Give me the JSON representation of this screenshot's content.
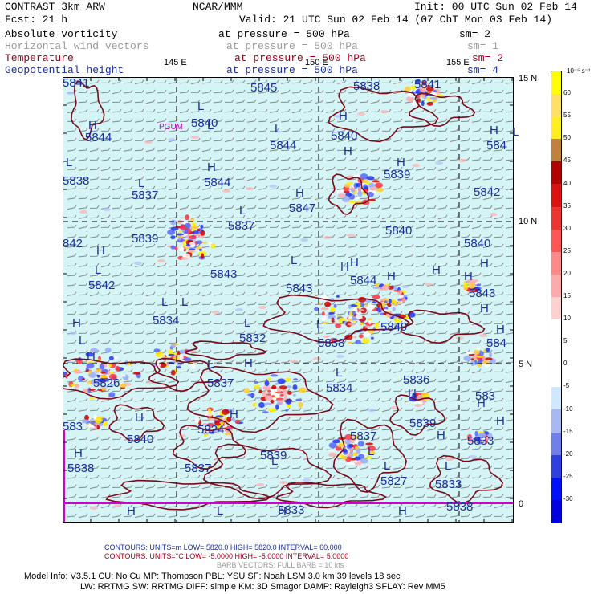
{
  "header": {
    "title": "CONTRAST  3km ARW",
    "center": "NCAR/MMM",
    "init": "Init: 00 UTC Sun 02 Feb 14",
    "fcst": "Fcst:    21 h",
    "valid": "Valid: 21 UTC Sun 02 Feb 14 (07 ChT Mon 03 Feb 14)"
  },
  "fields": [
    {
      "name": "Absolute vorticity",
      "level": "at pressure =  500 hPa",
      "sm": "sm= 2",
      "color": "#000000"
    },
    {
      "name": "Horizontal wind vectors",
      "level": "at pressure =  500 hPa",
      "sm": "sm= 1",
      "color": "#9a9a9a"
    },
    {
      "name": "Temperature",
      "level": "at pressure =  500 hPa",
      "sm": "sm= 2",
      "color": "#a0001a"
    },
    {
      "name": "Geopotential height",
      "level": "at pressure =  500 hPa",
      "sm": "sm= 4",
      "color": "#1a2f9a"
    }
  ],
  "map": {
    "lon_labels": [
      "145 E",
      "150 E",
      "155 E"
    ],
    "lat_labels": [
      "15 N",
      "10 N",
      "5 N",
      "0"
    ],
    "station": "PGUM",
    "height_labels": [
      {
        "t": "5841"
      },
      {
        "t": "5845"
      },
      {
        "t": "5838"
      },
      {
        "t": "5841"
      },
      {
        "t": "5840"
      },
      {
        "t": "5844"
      },
      {
        "t": "5844"
      },
      {
        "t": "5840"
      },
      {
        "t": "584"
      },
      {
        "t": "5838"
      },
      {
        "t": "5837"
      },
      {
        "t": "5844"
      },
      {
        "t": "5839"
      },
      {
        "t": "5842"
      },
      {
        "t": "5847"
      },
      {
        "t": "5837"
      },
      {
        "t": "5839"
      },
      {
        "t": "5840"
      },
      {
        "t": "5840"
      },
      {
        "t": "842"
      },
      {
        "t": "5842"
      },
      {
        "t": "5843"
      },
      {
        "t": "5843"
      },
      {
        "t": "5844"
      },
      {
        "t": "5843"
      },
      {
        "t": "5834"
      },
      {
        "t": "5849"
      },
      {
        "t": "5832"
      },
      {
        "t": "5838"
      },
      {
        "t": "584"
      },
      {
        "t": "583"
      },
      {
        "t": "5826"
      },
      {
        "t": "5837"
      },
      {
        "t": "5834"
      },
      {
        "t": "5836"
      },
      {
        "t": "583"
      },
      {
        "t": "5824"
      },
      {
        "t": "5839"
      },
      {
        "t": "5840"
      },
      {
        "t": "5837"
      },
      {
        "t": "5833"
      },
      {
        "t": "5839"
      },
      {
        "t": "5837"
      },
      {
        "t": "5838"
      },
      {
        "t": "5827"
      },
      {
        "t": "5833"
      },
      {
        "t": "5833"
      },
      {
        "t": "5838"
      }
    ],
    "hl_marks": [
      "L",
      "H",
      "L",
      "H",
      "H",
      "L",
      "H",
      "L",
      "H",
      "H",
      "L",
      "L",
      "H",
      "L",
      "L",
      "H",
      "H",
      "H",
      "H",
      "L",
      "L",
      "H",
      "L",
      "H",
      "H",
      "L",
      "H",
      "H",
      "L",
      "L",
      "L",
      "L",
      "H",
      "H",
      "H",
      "H",
      "H",
      "H",
      "H",
      "H",
      "L",
      "L",
      "H",
      "L",
      "H",
      "H",
      "L",
      "H",
      "H",
      "L"
    ]
  },
  "colorbar": {
    "unit": "10⁻⁵ s⁻¹",
    "labels": [
      "60",
      "55",
      "50",
      "45",
      "40",
      "35",
      "30",
      "25",
      "20",
      "15",
      "10",
      "5",
      "0",
      "-5",
      "-10",
      "-15",
      "-20",
      "-25",
      "-30"
    ],
    "colors": [
      "#ffff00",
      "#ffe066",
      "#ffee22",
      "#c08040",
      "#b00000",
      "#dd1111",
      "#ee3333",
      "#ff5555",
      "#ff8888",
      "#ffaaaa",
      "#ffd0d0",
      "#ffffff",
      "#ffffff",
      "#ffffff",
      "#d0e8ff",
      "#a8b8f0",
      "#7080e8",
      "#3040e0",
      "#0010ff",
      "#0000e0"
    ]
  },
  "footer": {
    "contours1": "CONTOURS:  UNITS=m   LOW=   5820.0        HIGH=  5820.0        INTERVAL=   60.000",
    "contours2": "CONTOURS:  UNITS=°C  LOW= -5.0000        HIGH= -5.0000        INTERVAL=    5.0000",
    "barbs": "BARB VECTORS:  FULL BARB = 10 kts",
    "model1": "Model Info: V3.5.1     CU: No Cu      MP: Thompson      PBL: YSU        SF: Noah LSM      3.0 km   39 levels    18 sec",
    "model2": "LW: RRTMG    SW: RRTMG   DIFF: simple KM: 3D Smagor DAMP: Rayleigh3   SFLAY: Rev MM5"
  }
}
